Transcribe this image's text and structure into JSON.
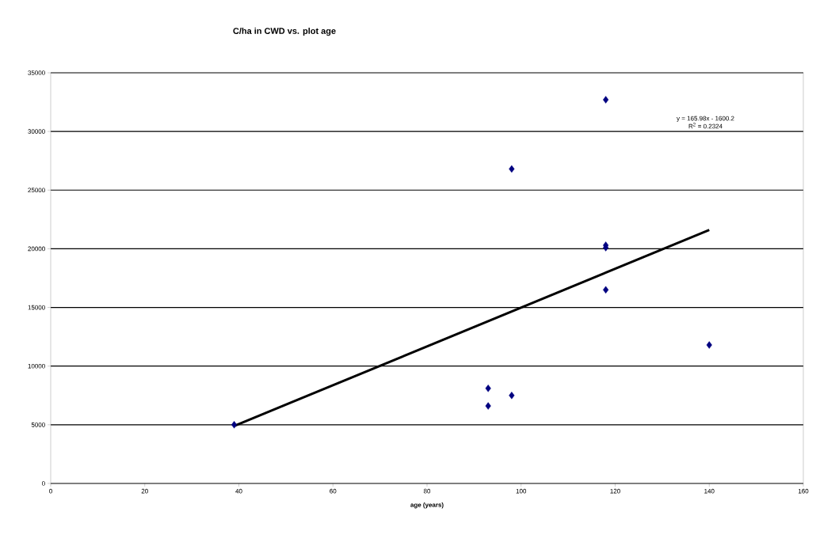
{
  "chart_data": {
    "type": "scatter",
    "title": "C/ha in CWD vs. plot age",
    "xlabel": "age (years)",
    "series": [
      {
        "color": "#000080",
        "marker": "diamond",
        "x": [
          39,
          93,
          93,
          98,
          98,
          118,
          118,
          118,
          118,
          140
        ],
        "values": [
          5000,
          8100,
          6600,
          7500,
          26800,
          32700,
          20300,
          20100,
          16500,
          11800
        ]
      },
      {
        "type": "line",
        "color": "#000000",
        "marker": "none",
        "x": [
          39,
          140
        ],
        "values": [
          4900,
          21600
        ]
      }
    ],
    "annotations": [
      "y = 165.98x - 1600.2",
      "R$^{2}$ = 0.2324"
    ],
    "xlim": [
      0,
      160
    ],
    "xticks": [
      0,
      20,
      40,
      60,
      80,
      100,
      120,
      140,
      160
    ],
    "ylim": [
      0,
      35000
    ],
    "yticks": [
      0,
      5000,
      10000,
      15000,
      20000,
      25000,
      30000,
      35000
    ],
    "grid": "y"
  }
}
